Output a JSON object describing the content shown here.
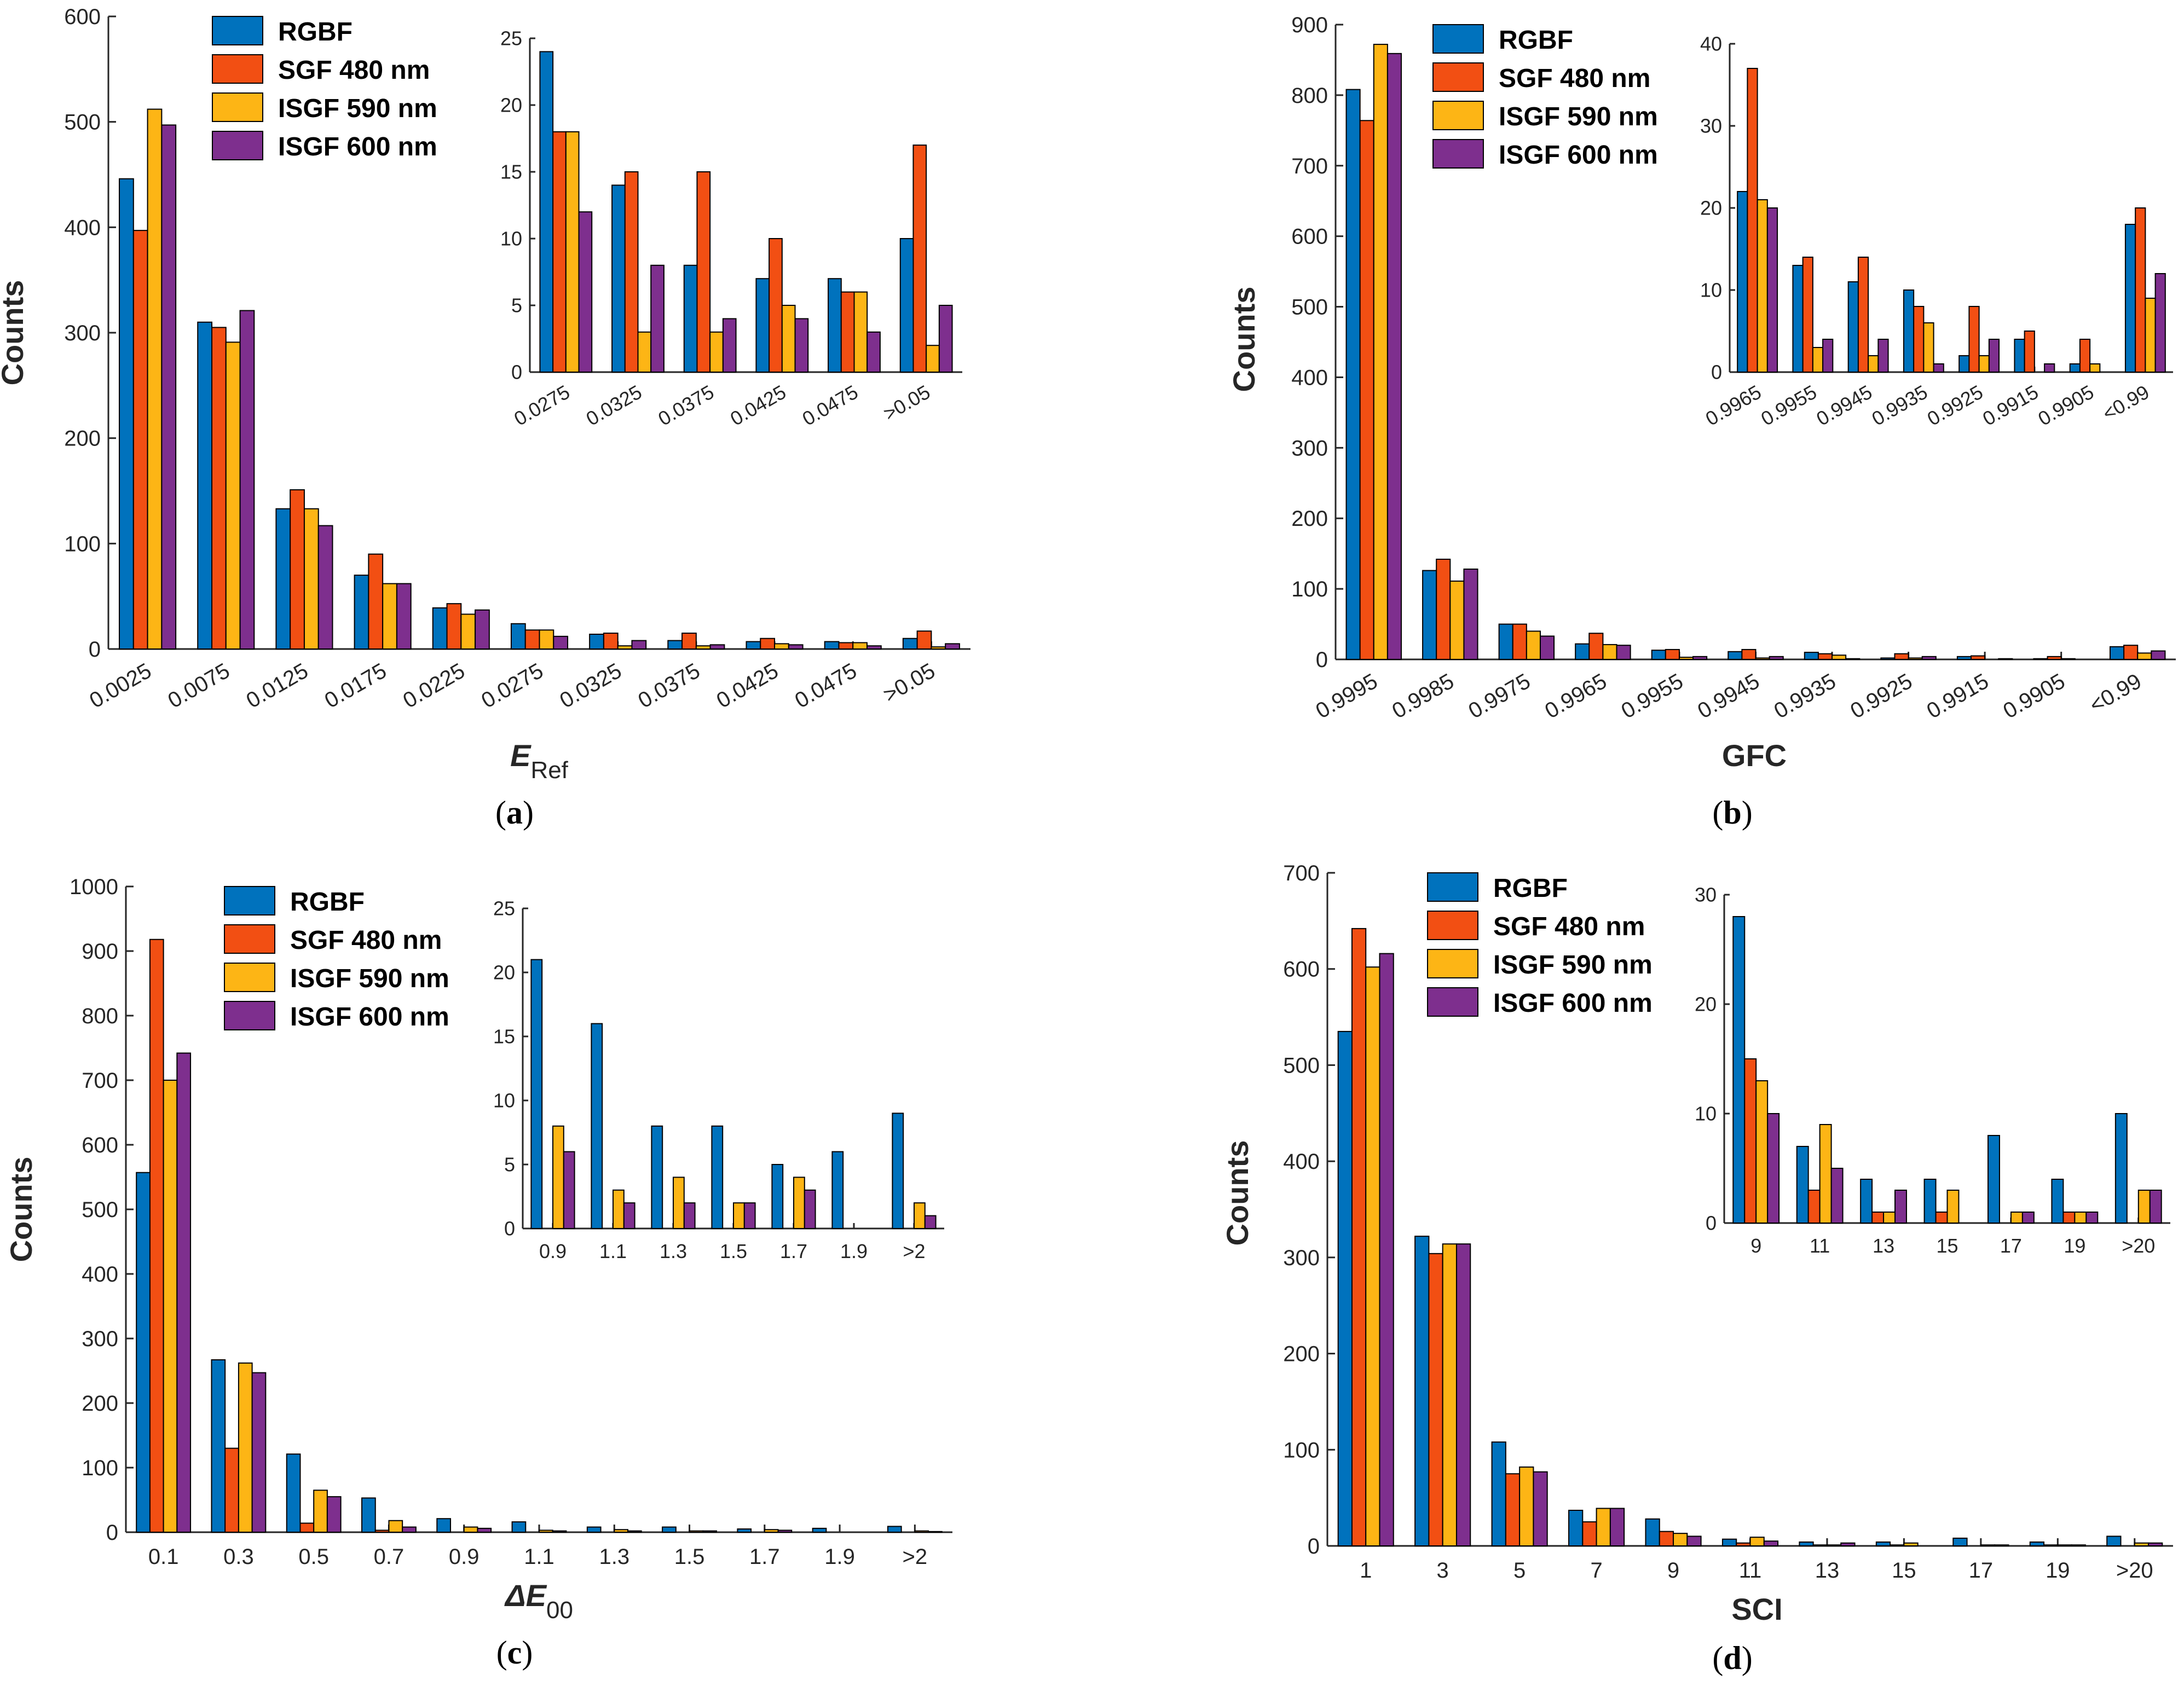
{
  "figure": {
    "legend": [
      "RGBF",
      "SGF 480 nm",
      "ISGF 590 nm",
      "ISGF 600 nm"
    ],
    "series_colors": [
      "#0072BD",
      "#F24F13",
      "#FDB515",
      "#7E2F8E"
    ]
  },
  "chart_data": [
    {
      "type": "bar",
      "panel_label": "(a)",
      "panel_letter": "a",
      "xlabel": "E",
      "xlabel_sub": "Ref",
      "ylabel": "Counts",
      "ylim": [
        0,
        600
      ],
      "yticks": [
        0,
        100,
        200,
        300,
        400,
        500,
        600
      ],
      "categories": [
        "0.0025",
        "0.0075",
        "0.0125",
        "0.0175",
        "0.0225",
        "0.0275",
        "0.0325",
        "0.0375",
        "0.0425",
        "0.0475",
        ">0.05"
      ],
      "series": [
        {
          "name": "RGBF",
          "values": [
            446,
            310,
            133,
            70,
            39,
            24,
            14,
            8,
            7,
            7,
            10
          ]
        },
        {
          "name": "SGF 480 nm",
          "values": [
            397,
            305,
            151,
            90,
            43,
            18,
            15,
            15,
            10,
            6,
            17
          ]
        },
        {
          "name": "ISGF 590 nm",
          "values": [
            512,
            291,
            133,
            62,
            33,
            18,
            3,
            3,
            5,
            6,
            2
          ]
        },
        {
          "name": "ISGF 600 nm",
          "values": [
            497,
            321,
            117,
            62,
            37,
            12,
            8,
            4,
            4,
            3,
            5
          ]
        }
      ],
      "inset": {
        "ylim": [
          0,
          25
        ],
        "yticks": [
          0,
          5,
          10,
          15,
          20,
          25
        ],
        "categories": [
          "0.0275",
          "0.0325",
          "0.0375",
          "0.0425",
          "0.0475",
          ">0.05"
        ],
        "series": [
          {
            "name": "RGBF",
            "values": [
              24,
              14,
              8,
              7,
              7,
              10
            ]
          },
          {
            "name": "SGF 480 nm",
            "values": [
              18,
              15,
              15,
              10,
              6,
              17
            ]
          },
          {
            "name": "ISGF 590 nm",
            "values": [
              18,
              3,
              3,
              5,
              6,
              2
            ]
          },
          {
            "name": "ISGF 600 nm",
            "values": [
              12,
              8,
              4,
              4,
              3,
              5
            ]
          }
        ]
      }
    },
    {
      "type": "bar",
      "panel_label": "(b)",
      "panel_letter": "b",
      "xlabel": "GFC",
      "xlabel_sub": "",
      "ylabel": "Counts",
      "ylim": [
        0,
        900
      ],
      "yticks": [
        0,
        100,
        200,
        300,
        400,
        500,
        600,
        700,
        800,
        900
      ],
      "categories": [
        "0.9995",
        "0.9985",
        "0.9975",
        "0.9965",
        "0.9955",
        "0.9945",
        "0.9935",
        "0.9925",
        "0.9915",
        "0.9905",
        "<0.99"
      ],
      "series": [
        {
          "name": "RGBF",
          "values": [
            808,
            126,
            50,
            22,
            13,
            11,
            10,
            2,
            4,
            1,
            18
          ]
        },
        {
          "name": "SGF 480 nm",
          "values": [
            764,
            142,
            50,
            37,
            14,
            14,
            8,
            8,
            5,
            4,
            20
          ]
        },
        {
          "name": "ISGF 590 nm",
          "values": [
            872,
            111,
            40,
            21,
            3,
            2,
            6,
            2,
            0,
            1,
            9
          ]
        },
        {
          "name": "ISGF 600 nm",
          "values": [
            859,
            128,
            33,
            20,
            4,
            4,
            1,
            4,
            1,
            0,
            12
          ]
        }
      ],
      "inset": {
        "ylim": [
          0,
          40
        ],
        "yticks": [
          0,
          10,
          20,
          30,
          40
        ],
        "categories": [
          "0.9965",
          "0.9955",
          "0.9945",
          "0.9935",
          "0.9925",
          "0.9915",
          "0.9905",
          "<0.99"
        ],
        "series": [
          {
            "name": "RGBF",
            "values": [
              22,
              13,
              11,
              10,
              2,
              4,
              1,
              18
            ]
          },
          {
            "name": "SGF 480 nm",
            "values": [
              37,
              14,
              14,
              8,
              8,
              5,
              4,
              20
            ]
          },
          {
            "name": "ISGF 590 nm",
            "values": [
              21,
              3,
              2,
              6,
              2,
              0,
              1,
              9
            ]
          },
          {
            "name": "ISGF 600 nm",
            "values": [
              20,
              4,
              4,
              1,
              4,
              1,
              0,
              12
            ]
          }
        ]
      }
    },
    {
      "type": "bar",
      "panel_label": "(c)",
      "panel_letter": "c",
      "xlabel": "ΔE",
      "xlabel_sub": "00",
      "ylabel": "Counts",
      "ylim": [
        0,
        1000
      ],
      "yticks": [
        0,
        100,
        200,
        300,
        400,
        500,
        600,
        700,
        800,
        900,
        1000
      ],
      "categories": [
        "0.1",
        "0.3",
        "0.5",
        "0.7",
        "0.9",
        "1.1",
        "1.3",
        "1.5",
        "1.7",
        "1.9",
        ">2"
      ],
      "series": [
        {
          "name": "RGBF",
          "values": [
            557,
            267,
            121,
            53,
            21,
            16,
            8,
            8,
            5,
            6,
            9
          ]
        },
        {
          "name": "SGF 480 nm",
          "values": [
            918,
            130,
            14,
            3,
            0,
            0,
            0,
            0,
            0,
            0,
            0
          ]
        },
        {
          "name": "ISGF 590 nm",
          "values": [
            700,
            262,
            65,
            18,
            8,
            3,
            4,
            2,
            4,
            0,
            2
          ]
        },
        {
          "name": "ISGF 600 nm",
          "values": [
            742,
            247,
            55,
            8,
            6,
            2,
            2,
            2,
            3,
            0,
            1
          ]
        }
      ],
      "inset": {
        "ylim": [
          0,
          25
        ],
        "yticks": [
          0,
          5,
          10,
          15,
          20,
          25
        ],
        "categories": [
          "0.9",
          "1.1",
          "1.3",
          "1.5",
          "1.7",
          "1.9",
          ">2"
        ],
        "series": [
          {
            "name": "RGBF",
            "values": [
              21,
              16,
              8,
              8,
              5,
              6,
              9
            ]
          },
          {
            "name": "SGF 480 nm",
            "values": [
              0,
              0,
              0,
              0,
              0,
              0,
              0
            ]
          },
          {
            "name": "ISGF 590 nm",
            "values": [
              8,
              3,
              4,
              2,
              4,
              0,
              2
            ]
          },
          {
            "name": "ISGF 600 nm",
            "values": [
              6,
              2,
              2,
              2,
              3,
              0,
              1
            ]
          }
        ]
      }
    },
    {
      "type": "bar",
      "panel_label": "(d)",
      "panel_letter": "d",
      "xlabel": "SCI",
      "xlabel_sub": "",
      "ylabel": "Counts",
      "ylim": [
        0,
        700
      ],
      "yticks": [
        0,
        100,
        200,
        300,
        400,
        500,
        600,
        700
      ],
      "categories": [
        "1",
        "3",
        "5",
        "7",
        "9",
        "11",
        "13",
        "15",
        "17",
        "19",
        ">20"
      ],
      "series": [
        {
          "name": "RGBF",
          "values": [
            535,
            322,
            108,
            37,
            28,
            7,
            4,
            4,
            8,
            4,
            10
          ]
        },
        {
          "name": "SGF 480 nm",
          "values": [
            642,
            304,
            75,
            25,
            15,
            3,
            1,
            1,
            0,
            1,
            0
          ]
        },
        {
          "name": "ISGF 590 nm",
          "values": [
            602,
            314,
            82,
            39,
            13,
            9,
            1,
            3,
            1,
            1,
            3
          ]
        },
        {
          "name": "ISGF 600 nm",
          "values": [
            616,
            314,
            77,
            39,
            10,
            5,
            3,
            0,
            1,
            1,
            3
          ]
        }
      ],
      "inset": {
        "ylim": [
          0,
          30
        ],
        "yticks": [
          0,
          10,
          20,
          30
        ],
        "categories": [
          "9",
          "11",
          "13",
          "15",
          "17",
          "19",
          ">20"
        ],
        "series": [
          {
            "name": "RGBF",
            "values": [
              28,
              7,
              4,
              4,
              8,
              4,
              10
            ]
          },
          {
            "name": "SGF 480 nm",
            "values": [
              15,
              3,
              1,
              1,
              0,
              1,
              0
            ]
          },
          {
            "name": "ISGF 590 nm",
            "values": [
              13,
              9,
              1,
              3,
              1,
              1,
              3
            ]
          },
          {
            "name": "ISGF 600 nm",
            "values": [
              10,
              5,
              3,
              0,
              1,
              1,
              3
            ]
          }
        ]
      }
    }
  ]
}
